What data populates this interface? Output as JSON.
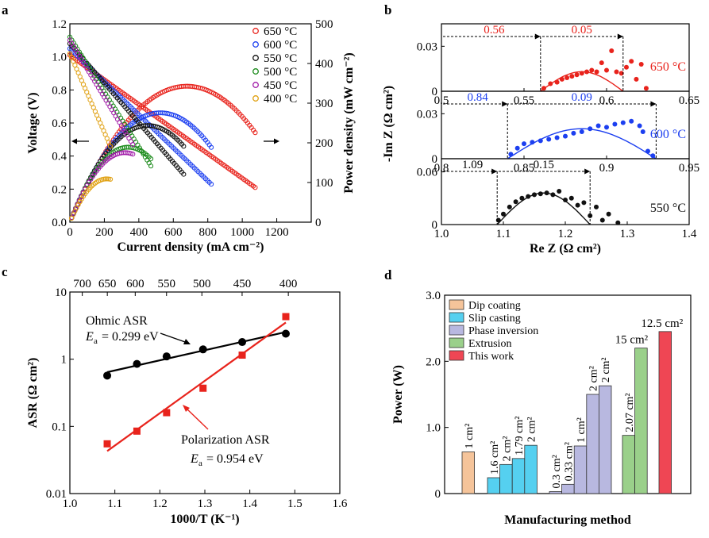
{
  "panels": {
    "a": {
      "letter": "a",
      "chart_data": {
        "type": "scatter",
        "xlabel": "Current density (mA cm⁻²)",
        "ylabel_left": "Voltage (V)",
        "ylabel_right": "Power density (mW cm⁻²)",
        "xlim": [
          0,
          1400
        ],
        "ylim_left": [
          0,
          1.2
        ],
        "ylim_right": [
          0,
          500
        ],
        "x_ticks": [
          "0",
          "200",
          "400",
          "600",
          "800",
          "1000",
          "1200"
        ],
        "y_left_ticks": [
          "0.0",
          "0.2",
          "0.4",
          "0.6",
          "0.8",
          "1.0",
          "1.2"
        ],
        "y_right_ticks": [
          "0",
          "100",
          "200",
          "300",
          "400",
          "500"
        ],
        "legend_position": "top-right",
        "series": [
          {
            "name": "650 °C",
            "color": "#e8231c",
            "ocv": 1.01,
            "imax": 1075,
            "vend": 0.21
          },
          {
            "name": "600 °C",
            "color": "#1c3ff0",
            "ocv": 1.05,
            "imax": 820,
            "vend": 0.23
          },
          {
            "name": "550 °C",
            "color": "#111111",
            "ocv": 1.08,
            "imax": 660,
            "vend": 0.29
          },
          {
            "name": "500 °C",
            "color": "#1a8a1a",
            "ocv": 1.12,
            "imax": 470,
            "vend": 0.34
          },
          {
            "name": "450 °C",
            "color": "#a01aa8",
            "ocv": 1.1,
            "imax": 365,
            "vend": 0.47
          },
          {
            "name": "400 °C",
            "color": "#e0a010",
            "ocv": 1.02,
            "imax": 235,
            "vend": 0.46
          }
        ]
      }
    },
    "b": {
      "letter": "b",
      "chart_data": {
        "type": "scatter",
        "xlabel": "Re Z (Ω cm²)",
        "ylabel": "-Im Z (Ω cm²)",
        "subplots": [
          {
            "label": "650 °C",
            "color": "#e8231c",
            "xlim": [
              0.5,
              0.65
            ],
            "ylim": [
              0,
              0.045
            ],
            "x_ticks": [
              "0.5",
              "0.55",
              "0.6",
              "0.65"
            ],
            "y_ticks": [
              "0",
              "0.03"
            ],
            "r0": 0.56,
            "arc": 0.05,
            "peak": 0.013,
            "points": [
              [
                0.562,
                0.002
              ],
              [
                0.566,
                0.005
              ],
              [
                0.57,
                0.006
              ],
              [
                0.573,
                0.008
              ],
              [
                0.576,
                0.009
              ],
              [
                0.579,
                0.01
              ],
              [
                0.582,
                0.011
              ],
              [
                0.585,
                0.012
              ],
              [
                0.588,
                0.013
              ],
              [
                0.591,
                0.014
              ],
              [
                0.594,
                0.013
              ],
              [
                0.597,
                0.019
              ],
              [
                0.6,
                0.014
              ],
              [
                0.603,
                0.027
              ],
              [
                0.606,
                0.013
              ],
              [
                0.609,
                0.012
              ],
              [
                0.612,
                0.016
              ],
              [
                0.615,
                0.02
              ],
              [
                0.618,
                0.008
              ],
              [
                0.621,
                0.018
              ],
              [
                0.624,
                0.002
              ]
            ]
          },
          {
            "label": "600 °C",
            "color": "#1c3ff0",
            "xlim": [
              0.8,
              0.95
            ],
            "ylim": [
              0,
              0.045
            ],
            "x_ticks": [
              "0.8",
              "0.85",
              "0.9",
              "0.95"
            ],
            "y_ticks": [
              "0",
              "0.03"
            ],
            "r0": 0.84,
            "arc": 0.09,
            "peak": 0.02,
            "points": [
              [
                0.842,
                0.003
              ],
              [
                0.846,
                0.007
              ],
              [
                0.85,
                0.01
              ],
              [
                0.855,
                0.011
              ],
              [
                0.86,
                0.012
              ],
              [
                0.865,
                0.013
              ],
              [
                0.87,
                0.014
              ],
              [
                0.875,
                0.015
              ],
              [
                0.88,
                0.017
              ],
              [
                0.885,
                0.018
              ],
              [
                0.89,
                0.02
              ],
              [
                0.895,
                0.022
              ],
              [
                0.9,
                0.021
              ],
              [
                0.905,
                0.023
              ],
              [
                0.91,
                0.024
              ],
              [
                0.915,
                0.025
              ],
              [
                0.92,
                0.022
              ],
              [
                0.922,
                0.018
              ],
              [
                0.925,
                0.005
              ],
              [
                0.928,
                0.002
              ]
            ]
          },
          {
            "label": "550 °C",
            "color": "#111111",
            "xlim": [
              1.0,
              1.4
            ],
            "ylim": [
              0,
              0.075
            ],
            "x_ticks": [
              "1.0",
              "1.1",
              "1.2",
              "1.3",
              "1.4"
            ],
            "y_ticks": [
              "0",
              "0.06"
            ],
            "r0": 1.09,
            "arc": 0.15,
            "peak": 0.036,
            "points": [
              [
                1.092,
                0.005
              ],
              [
                1.1,
                0.012
              ],
              [
                1.11,
                0.02
              ],
              [
                1.12,
                0.026
              ],
              [
                1.13,
                0.03
              ],
              [
                1.14,
                0.032
              ],
              [
                1.15,
                0.034
              ],
              [
                1.16,
                0.035
              ],
              [
                1.17,
                0.036
              ],
              [
                1.18,
                0.034
              ],
              [
                1.19,
                0.038
              ],
              [
                1.2,
                0.028
              ],
              [
                1.21,
                0.03
              ],
              [
                1.22,
                0.022
              ],
              [
                1.23,
                0.025
              ],
              [
                1.24,
                0.01
              ],
              [
                1.25,
                0.02
              ],
              [
                1.26,
                0.005
              ],
              [
                1.27,
                0.012
              ],
              [
                1.285,
                0.002
              ]
            ]
          }
        ]
      }
    },
    "c": {
      "letter": "c",
      "chart_data": {
        "type": "scatter",
        "xlabel": "1000/T (K⁻¹)",
        "ylabel": "ASR (Ω cm²)",
        "xlim": [
          1.0,
          1.6
        ],
        "ylim": [
          0.01,
          10
        ],
        "yscale": "log",
        "x_ticks": [
          "1.0",
          "1.1",
          "1.2",
          "1.3",
          "1.4",
          "1.5",
          "1.6"
        ],
        "y_ticks": [
          "0.01",
          "0.1",
          "1",
          "10"
        ],
        "top_ticks": [
          "700",
          "650",
          "600",
          "550",
          "500",
          "450",
          "400"
        ],
        "series": [
          {
            "name": "Ohmic ASR",
            "ea": "= 0.299 eV",
            "color": "#000000",
            "x": [
              1.083,
              1.149,
              1.215,
              1.296,
              1.383,
              1.48
            ],
            "y": [
              0.57,
              0.85,
              1.1,
              1.4,
              1.8,
              2.4
            ]
          },
          {
            "name": "Polarization ASR",
            "ea": "= 0.954 eV",
            "color": "#e8231c",
            "x": [
              1.083,
              1.149,
              1.215,
              1.296,
              1.383,
              1.48
            ],
            "y": [
              0.055,
              0.085,
              0.16,
              0.37,
              1.15,
              4.3
            ]
          }
        ]
      }
    },
    "d": {
      "letter": "d",
      "chart_data": {
        "type": "bar",
        "xlabel": "Manufacturing method",
        "ylabel": "Power (W)",
        "ylim": [
          0,
          3.0
        ],
        "y_ticks": [
          "0",
          "1.0",
          "2.0",
          "3.0"
        ],
        "legend_position": "top-left",
        "legend": [
          {
            "name": "Dip coating",
            "color": "#f5c49a"
          },
          {
            "name": "Slip casting",
            "color": "#55d0f0"
          },
          {
            "name": "Phase inversion",
            "color": "#b8b8e0"
          },
          {
            "name": "Extrusion",
            "color": "#9ad08a"
          },
          {
            "name": "This work",
            "color": "#ef4654"
          }
        ],
        "groups": [
          {
            "method": "Dip coating",
            "bars": [
              {
                "value": 0.63,
                "label": "1 cm²"
              }
            ]
          },
          {
            "method": "Slip casting",
            "bars": [
              {
                "value": 0.24,
                "label": "1.6 cm²"
              },
              {
                "value": 0.44,
                "label": "2 cm²"
              },
              {
                "value": 0.53,
                "label": "1.79 cm²"
              },
              {
                "value": 0.73,
                "label": "2 cm²"
              }
            ]
          },
          {
            "method": "Phase inversion",
            "bars": [
              {
                "value": 0.03,
                "label": "0.3 cm²"
              },
              {
                "value": 0.14,
                "label": "0.33 cm²"
              },
              {
                "value": 0.72,
                "label": "1 cm²"
              },
              {
                "value": 1.5,
                "label": "2 cm²"
              },
              {
                "value": 1.63,
                "label": "2 cm²"
              }
            ]
          },
          {
            "method": "Extrusion",
            "bars": [
              {
                "value": 0.88,
                "label": "2.07 cm²"
              },
              {
                "value": 2.2,
                "label": "15 cm²"
              }
            ]
          },
          {
            "method": "This work",
            "bars": [
              {
                "value": 2.45,
                "label": "12.5 cm²"
              }
            ]
          }
        ]
      }
    }
  }
}
